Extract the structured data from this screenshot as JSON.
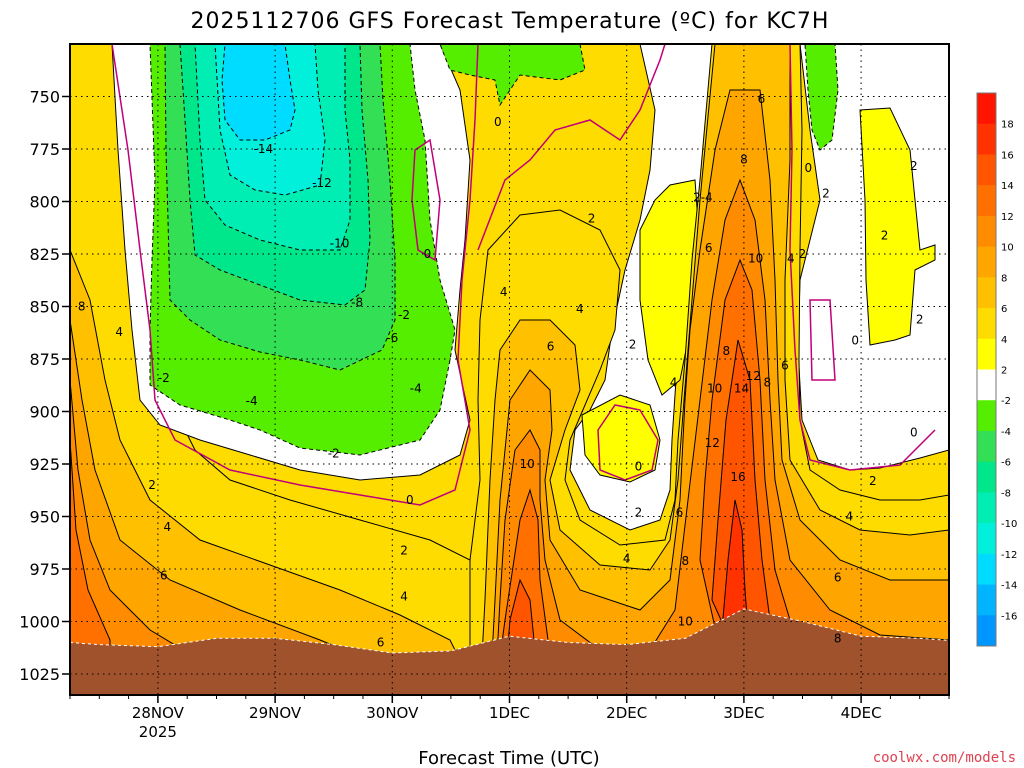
{
  "title": "2025112706 GFS Forecast Temperature (ºC) for KC7H",
  "credit": "coolwx.com/models",
  "chart_data": {
    "type": "heatmap",
    "title": "2025112706 GFS Forecast Temperature (ºC) for KC7H",
    "xlabel": "Forecast Time (UTC)",
    "ylabel": "",
    "y_axis": {
      "label": "",
      "unit": "hPa",
      "inverted": true,
      "range": [
        1035,
        725
      ],
      "ticks": [
        750,
        775,
        800,
        825,
        850,
        875,
        900,
        925,
        950,
        975,
        1000,
        1025
      ]
    },
    "x_axis": {
      "label": "Forecast Time (UTC)",
      "range_days": [
        -0.75,
        6.75
      ],
      "ticks": [
        {
          "day": 0,
          "label": "28NOV",
          "sub": "2025"
        },
        {
          "day": 1,
          "label": "29NOV",
          "sub": ""
        },
        {
          "day": 2,
          "label": "30NOV",
          "sub": ""
        },
        {
          "day": 3,
          "label": "1DEC",
          "sub": ""
        },
        {
          "day": 4,
          "label": "2DEC",
          "sub": ""
        },
        {
          "day": 5,
          "label": "3DEC",
          "sub": ""
        },
        {
          "day": 6,
          "label": "4DEC",
          "sub": ""
        }
      ]
    },
    "grid": true,
    "colorbar": {
      "levels": [
        18,
        16,
        14,
        12,
        10,
        8,
        6,
        4,
        2,
        -2,
        -4,
        -6,
        -8,
        -10,
        -12,
        -14,
        -16
      ],
      "bins": [
        {
          "lo": 18,
          "hi": 20,
          "color": "#ff1400"
        },
        {
          "lo": 16,
          "hi": 18,
          "color": "#ff3200"
        },
        {
          "lo": 14,
          "hi": 16,
          "color": "#ff5500"
        },
        {
          "lo": 12,
          "hi": 14,
          "color": "#ff7000"
        },
        {
          "lo": 10,
          "hi": 12,
          "color": "#ff8c00"
        },
        {
          "lo": 8,
          "hi": 10,
          "color": "#ffa500"
        },
        {
          "lo": 6,
          "hi": 8,
          "color": "#ffc000"
        },
        {
          "lo": 4,
          "hi": 6,
          "color": "#ffdc00"
        },
        {
          "lo": 2,
          "hi": 4,
          "color": "#ffff00"
        },
        {
          "lo": -2,
          "hi": 2,
          "color": "#ffffff"
        },
        {
          "lo": -4,
          "hi": -2,
          "color": "#55ee00"
        },
        {
          "lo": -6,
          "hi": -4,
          "color": "#33e055"
        },
        {
          "lo": -8,
          "hi": -6,
          "color": "#00e68a"
        },
        {
          "lo": -10,
          "hi": -8,
          "color": "#00eeb4"
        },
        {
          "lo": -12,
          "hi": -10,
          "color": "#00f0dc"
        },
        {
          "lo": -14,
          "hi": -12,
          "color": "#00dcff"
        },
        {
          "lo": -16,
          "hi": -14,
          "color": "#00b4ff"
        },
        {
          "lo": -18,
          "hi": -16,
          "color": "#0096ff"
        }
      ]
    },
    "terrain_color": "#a0522d",
    "zero_contour_color": "#c0007a",
    "surface_pressure": [
      [
        -0.75,
        1010
      ],
      [
        -0.5,
        1011
      ],
      [
        0,
        1012
      ],
      [
        0.5,
        1008
      ],
      [
        1,
        1008
      ],
      [
        1.5,
        1011
      ],
      [
        2,
        1015
      ],
      [
        2.5,
        1014
      ],
      [
        3,
        1007
      ],
      [
        3.5,
        1010
      ],
      [
        4,
        1011
      ],
      [
        4.5,
        1008
      ],
      [
        5,
        994
      ],
      [
        5.5,
        1000
      ],
      [
        6,
        1007
      ],
      [
        6.5,
        1008
      ],
      [
        6.75,
        1009
      ]
    ],
    "contour_labels": [
      {
        "x": -0.65,
        "p": 852,
        "t": "8"
      },
      {
        "x": -0.33,
        "p": 864,
        "t": "4"
      },
      {
        "x": 0.05,
        "p": 886,
        "t": "-2"
      },
      {
        "x": -0.05,
        "p": 937,
        "t": "2"
      },
      {
        "x": 0.08,
        "p": 957,
        "t": "4"
      },
      {
        "x": 0.05,
        "p": 980,
        "t": "6"
      },
      {
        "x": 0.9,
        "p": 777,
        "t": "-14"
      },
      {
        "x": 1.4,
        "p": 793,
        "t": "-12"
      },
      {
        "x": 1.55,
        "p": 822,
        "t": "-10"
      },
      {
        "x": 1.7,
        "p": 850,
        "t": "-8"
      },
      {
        "x": 0.8,
        "p": 897,
        "t": "-4"
      },
      {
        "x": 1.5,
        "p": 922,
        "t": "-2"
      },
      {
        "x": 2.0,
        "p": 867,
        "t": "-6"
      },
      {
        "x": 2.1,
        "p": 856,
        "t": "-2"
      },
      {
        "x": 2.2,
        "p": 891,
        "t": "-4"
      },
      {
        "x": 2.3,
        "p": 827,
        "t": "0"
      },
      {
        "x": 2.15,
        "p": 944,
        "t": "0"
      },
      {
        "x": 2.1,
        "p": 968,
        "t": "2"
      },
      {
        "x": 2.1,
        "p": 990,
        "t": "4"
      },
      {
        "x": 1.9,
        "p": 1012,
        "t": "6"
      },
      {
        "x": 2.9,
        "p": 764,
        "t": "0"
      },
      {
        "x": 2.95,
        "p": 845,
        "t": "4"
      },
      {
        "x": 3.6,
        "p": 853,
        "t": "4"
      },
      {
        "x": 3.35,
        "p": 871,
        "t": "6"
      },
      {
        "x": 3.7,
        "p": 810,
        "t": "2"
      },
      {
        "x": 3.15,
        "p": 927,
        "t": "10"
      },
      {
        "x": 4.05,
        "p": 870,
        "t": "2"
      },
      {
        "x": 4.4,
        "p": 888,
        "t": "4"
      },
      {
        "x": 4.65,
        "p": 800,
        "t": "2-4"
      },
      {
        "x": 4.1,
        "p": 928,
        "t": "0"
      },
      {
        "x": 4.1,
        "p": 950,
        "t": "2"
      },
      {
        "x": 4.0,
        "p": 972,
        "t": "4"
      },
      {
        "x": 4.45,
        "p": 950,
        "t": "6"
      },
      {
        "x": 4.5,
        "p": 973,
        "t": "8"
      },
      {
        "x": 4.5,
        "p": 1002,
        "t": "10"
      },
      {
        "x": 4.7,
        "p": 824,
        "t": "6"
      },
      {
        "x": 4.85,
        "p": 873,
        "t": "8"
      },
      {
        "x": 4.75,
        "p": 891,
        "t": "10"
      },
      {
        "x": 4.73,
        "p": 917,
        "t": "12"
      },
      {
        "x": 4.98,
        "p": 891,
        "t": "14"
      },
      {
        "x": 5.08,
        "p": 885,
        "t": "12"
      },
      {
        "x": 5.2,
        "p": 888,
        "t": "8"
      },
      {
        "x": 5.35,
        "p": 880,
        "t": "6"
      },
      {
        "x": 4.95,
        "p": 933,
        "t": "16"
      },
      {
        "x": 5.0,
        "p": 782,
        "t": "8"
      },
      {
        "x": 5.1,
        "p": 829,
        "t": "10"
      },
      {
        "x": 5.15,
        "p": 753,
        "t": "6"
      },
      {
        "x": 5.4,
        "p": 829,
        "t": "4"
      },
      {
        "x": 5.5,
        "p": 827,
        "t": "2"
      },
      {
        "x": 5.55,
        "p": 786,
        "t": "0"
      },
      {
        "x": 5.7,
        "p": 798,
        "t": "2"
      },
      {
        "x": 6.2,
        "p": 818,
        "t": "2"
      },
      {
        "x": 6.45,
        "p": 785,
        "t": "2"
      },
      {
        "x": 6.5,
        "p": 858,
        "t": "2"
      },
      {
        "x": 5.95,
        "p": 868,
        "t": "0"
      },
      {
        "x": 6.45,
        "p": 912,
        "t": "0"
      },
      {
        "x": 6.1,
        "p": 935,
        "t": "2"
      },
      {
        "x": 5.9,
        "p": 952,
        "t": "4"
      },
      {
        "x": 5.8,
        "p": 981,
        "t": "6"
      },
      {
        "x": 5.8,
        "p": 1010,
        "t": "8"
      }
    ]
  }
}
